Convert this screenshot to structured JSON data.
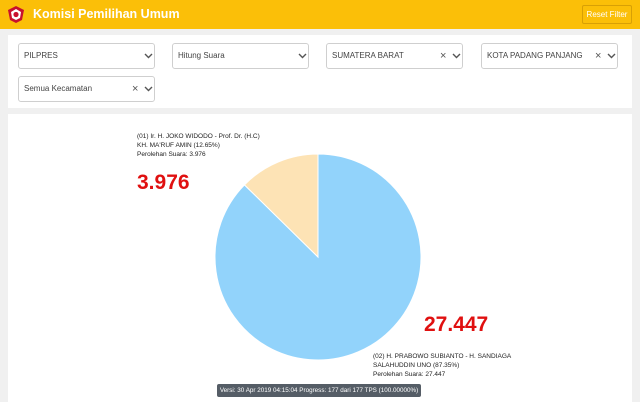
{
  "header": {
    "title": "Komisi Pemilihan Umum",
    "reset_label": "Reset Filter",
    "accent_color": "#fbbf08",
    "logo_icon": "kpu-logo-icon"
  },
  "filters": [
    {
      "value": "PILPRES",
      "clearable": false
    },
    {
      "value": "Hitung Suara",
      "clearable": false
    },
    {
      "value": "SUMATERA BARAT",
      "clearable": true
    },
    {
      "value": "KOTA PADANG PANJANG",
      "clearable": true
    },
    {
      "value": "Semua Kecamatan",
      "clearable": true
    }
  ],
  "chart_data": {
    "type": "pie",
    "slices": [
      {
        "name_line1": "(01) Ir. H. JOKO WIDODO - Prof. Dr. (H.C)",
        "name_line2": "KH. MA'RUF AMIN (12.65%)",
        "votes_label": "Perolehan Suara: 3.976",
        "big_value": "3.976",
        "value": 3976,
        "percent": 12.65,
        "color": "#fde3b5"
      },
      {
        "name_line1": "(02) H. PRABOWO SUBIANTO - H. SANDIAGA",
        "name_line2": "SALAHUDDIN UNO (87.35%)",
        "votes_label": "Perolehan Suara: 27.447",
        "big_value": "27.447",
        "value": 27447,
        "percent": 87.35,
        "color": "#92d3fb"
      }
    ]
  },
  "status_bar": "Versi: 30 Apr 2019 04:15:04 Progress: 177 dari 177 TPS (100.00000%)"
}
